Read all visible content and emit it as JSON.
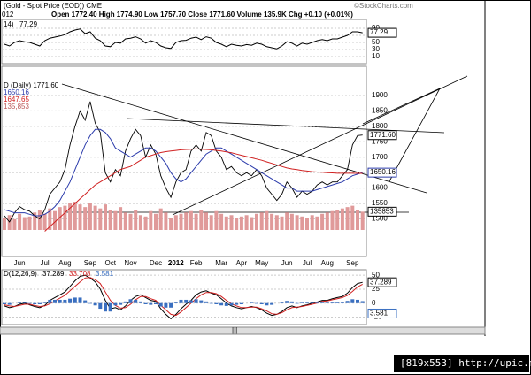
{
  "header": {
    "title": "(Gold - Spot Price (EOD)) CME",
    "source": "©StockCharts.com",
    "date": "012",
    "quote": "Open 1772.40  High 1774.90  Low 1757.70  Close 1771.60  Volume 135.9K  Chg +0.10 (+0.01%)"
  },
  "chart_data": [
    {
      "type": "line",
      "legend": "14)",
      "name": "77.29",
      "color": "#000000",
      "ylim": [
        0,
        100
      ],
      "yticks": [
        10,
        30,
        50,
        70,
        90
      ],
      "values": [
        45,
        40,
        50,
        55,
        52,
        50,
        45,
        40,
        55,
        62,
        65,
        68,
        72,
        80,
        85,
        88,
        75,
        80,
        62,
        55,
        40,
        38,
        50,
        48,
        60,
        62,
        66,
        60,
        48,
        55,
        50,
        40,
        35,
        33,
        50,
        55,
        56,
        62,
        65,
        58,
        66,
        62,
        50,
        45,
        38,
        45,
        42,
        40,
        44,
        42,
        48,
        45,
        38,
        35,
        32,
        40,
        52,
        48,
        40,
        48,
        45,
        50,
        55,
        58,
        55,
        60,
        60,
        65,
        70,
        80,
        80,
        77.29
      ]
    },
    {
      "type": "line",
      "ylim": [
        1470,
        1960
      ],
      "yticks": [
        1500,
        1550,
        1600,
        1650,
        1700,
        1750,
        1800,
        1850,
        1900
      ],
      "price_box": "1771.60",
      "categories": [
        null,
        null,
        null,
        "Jun",
        null,
        null,
        null,
        null,
        "Jul",
        null,
        null,
        null,
        "Aug",
        null,
        null,
        null,
        null,
        "Sep",
        null,
        null,
        null,
        "Oct",
        null,
        null,
        null,
        "Nov",
        null,
        null,
        null,
        null,
        "Dec",
        null,
        null,
        null,
        "2012",
        null,
        null,
        null,
        "Feb",
        null,
        null,
        null,
        null,
        "Mar",
        null,
        null,
        null,
        "Apr",
        null,
        null,
        null,
        "May",
        null,
        null,
        null,
        null,
        "Jun",
        null,
        null,
        null,
        "Jul",
        null,
        null,
        null,
        "Aug",
        null,
        null,
        null,
        null,
        "Sep",
        null,
        null
      ],
      "series": [
        {
          "name": "D (Daily) 1771.60",
          "color": "#000000",
          "values": [
            1510,
            1490,
            1520,
            1540,
            1530,
            1525,
            1510,
            1500,
            1530,
            1580,
            1600,
            1620,
            1660,
            1740,
            1800,
            1850,
            1820,
            1880,
            1810,
            1780,
            1650,
            1620,
            1660,
            1640,
            1720,
            1760,
            1790,
            1770,
            1700,
            1740,
            1710,
            1640,
            1600,
            1570,
            1620,
            1650,
            1660,
            1720,
            1740,
            1720,
            1780,
            1770,
            1720,
            1700,
            1660,
            1670,
            1650,
            1640,
            1650,
            1640,
            1660,
            1640,
            1600,
            1580,
            1560,
            1580,
            1620,
            1600,
            1570,
            1590,
            1580,
            1590,
            1610,
            1620,
            1610,
            1620,
            1620,
            1640,
            1660,
            1740,
            1770,
            1771.6
          ]
        },
        {
          "name": "1650.16",
          "color": "#2b3bab",
          "values": [
            1530,
            1525,
            1520,
            1520,
            1520,
            1515,
            1510,
            1510,
            1515,
            1525,
            1540,
            1560,
            1590,
            1620,
            1660,
            1700,
            1740,
            1770,
            1790,
            1790,
            1780,
            1760,
            1730,
            1720,
            1710,
            1700,
            1710,
            1720,
            1730,
            1730,
            1720,
            1700,
            1680,
            1650,
            1630,
            1620,
            1630,
            1650,
            1670,
            1690,
            1710,
            1720,
            1730,
            1730,
            1720,
            1710,
            1700,
            1690,
            1680,
            1670,
            1660,
            1650,
            1640,
            1630,
            1620,
            1610,
            1600,
            1600,
            1590,
            1590,
            1590,
            1590,
            1595,
            1600,
            1605,
            1610,
            1615,
            1620,
            1630,
            1640,
            1645,
            1650.16
          ]
        },
        {
          "name": "1647.65",
          "color": "#d02020",
          "values": [
            null,
            null,
            null,
            null,
            null,
            null,
            null,
            null,
            1460,
            1475,
            1490,
            1505,
            1520,
            1535,
            1550,
            1565,
            1580,
            1595,
            1610,
            1620,
            1630,
            1640,
            1650,
            1660,
            1665,
            1670,
            1680,
            1690,
            1700,
            1705,
            1710,
            1715,
            1718,
            1720,
            1722,
            1724,
            1725,
            1726,
            1727,
            1726,
            1725,
            1724,
            1722,
            1720,
            1717,
            1714,
            1710,
            1706,
            1702,
            1698,
            1694,
            1690,
            1685,
            1680,
            1675,
            1670,
            1665,
            1662,
            1660,
            1657,
            1655,
            1653,
            1652,
            1651,
            1650,
            1649,
            1648,
            1648,
            1648,
            1648,
            1647.7,
            1647.65
          ]
        }
      ],
      "volume": {
        "name": "135,853",
        "box": "135853",
        "color": "#e09a9a",
        "ylim": [
          0,
          250000
        ],
        "values": [
          90000,
          110000,
          80000,
          120000,
          95000,
          100000,
          130000,
          150000,
          120000,
          160000,
          140000,
          170000,
          180000,
          200000,
          210000,
          190000,
          170000,
          200000,
          180000,
          160000,
          190000,
          150000,
          140000,
          170000,
          130000,
          120000,
          150000,
          110000,
          100000,
          140000,
          120000,
          160000,
          130000,
          90000,
          110000,
          120000,
          130000,
          140000,
          120000,
          150000,
          130000,
          110000,
          140000,
          120000,
          100000,
          110000,
          90000,
          100000,
          110000,
          95000,
          120000,
          130000,
          140000,
          120000,
          110000,
          100000,
          130000,
          120000,
          110000,
          100000,
          90000,
          110000,
          100000,
          120000,
          130000,
          140000,
          150000,
          160000,
          170000,
          180000,
          150000,
          135853
        ]
      }
    },
    {
      "type": "macd",
      "legend": "D(12,26,9)",
      "ylim": [
        -40,
        55
      ],
      "yticks": [
        -25,
        0,
        25,
        50
      ],
      "series": [
        {
          "name": "37.289",
          "color": "#000000",
          "values": [
            -5,
            -8,
            -6,
            -2,
            0,
            -3,
            -6,
            -8,
            -4,
            5,
            10,
            15,
            20,
            30,
            40,
            48,
            50,
            45,
            38,
            25,
            5,
            -10,
            -8,
            -12,
            -5,
            5,
            12,
            15,
            10,
            5,
            3,
            -10,
            -20,
            -28,
            -20,
            -10,
            -2,
            5,
            15,
            20,
            22,
            18,
            15,
            8,
            0,
            -5,
            -8,
            -10,
            -8,
            -6,
            -8,
            -12,
            -18,
            -22,
            -20,
            -15,
            -8,
            -5,
            -8,
            -5,
            -3,
            0,
            2,
            5,
            5,
            8,
            10,
            12,
            18,
            28,
            35,
            37.289
          ]
        },
        {
          "name": "33.708",
          "color": "#d02020",
          "values": [
            -3,
            -5,
            -6,
            -4,
            -2,
            -2,
            -4,
            -6,
            -5,
            -1,
            4,
            9,
            14,
            22,
            30,
            38,
            45,
            46,
            42,
            35,
            20,
            5,
            -4,
            -9,
            -8,
            -2,
            6,
            12,
            12,
            8,
            5,
            -4,
            -12,
            -20,
            -22,
            -16,
            -8,
            0,
            8,
            15,
            19,
            19,
            17,
            12,
            5,
            -1,
            -5,
            -8,
            -8,
            -7,
            -7,
            -10,
            -14,
            -19,
            -20,
            -17,
            -12,
            -8,
            -7,
            -6,
            -4,
            -2,
            0,
            3,
            4,
            6,
            8,
            10,
            14,
            21,
            29,
            33.708
          ]
        },
        {
          "name": "3.581",
          "color": "#3a6fc0",
          "bars": true,
          "values": [
            -2,
            -3,
            0,
            2,
            2,
            -1,
            -2,
            -2,
            1,
            6,
            6,
            6,
            6,
            8,
            10,
            10,
            5,
            -1,
            -4,
            -10,
            -15,
            -15,
            -4,
            -3,
            3,
            7,
            6,
            3,
            -2,
            -3,
            -2,
            -6,
            -8,
            -8,
            2,
            6,
            6,
            5,
            7,
            5,
            3,
            -1,
            -2,
            -4,
            -5,
            -4,
            -3,
            -2,
            0,
            1,
            -1,
            -2,
            -4,
            -3,
            0,
            2,
            4,
            3,
            -1,
            1,
            1,
            2,
            2,
            2,
            1,
            2,
            2,
            2,
            4,
            7,
            6,
            3.581
          ]
        }
      ]
    }
  ],
  "footer": {
    "scroll": "|||",
    "watermark": "[819x553] http://upic.me/"
  }
}
